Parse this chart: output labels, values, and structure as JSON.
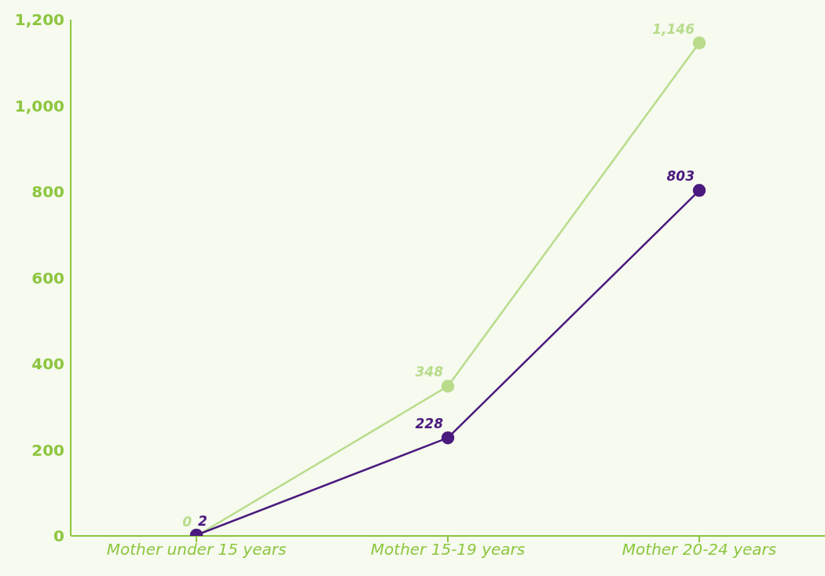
{
  "chart_data": {
    "type": "line",
    "categories": [
      "Mother under 15 years",
      "Mother 15-19 years",
      "Mother 20-24 years"
    ],
    "series": [
      {
        "color": "#b9dc8c",
        "values": [
          0,
          348,
          1146
        ],
        "value_labels": [
          "0",
          "348",
          "1,146"
        ]
      },
      {
        "color": "#4b1a7e",
        "values": [
          2,
          228,
          803
        ],
        "value_labels": [
          "2",
          "228",
          "803"
        ]
      }
    ],
    "ylim": [
      0,
      1200
    ],
    "yticks": [
      0,
      200,
      400,
      600,
      800,
      {
        "value": 1000,
        "label": "1,000"
      },
      {
        "value": 1200,
        "label": "1,200"
      }
    ],
    "marker": "circle",
    "line_style": "solid"
  }
}
